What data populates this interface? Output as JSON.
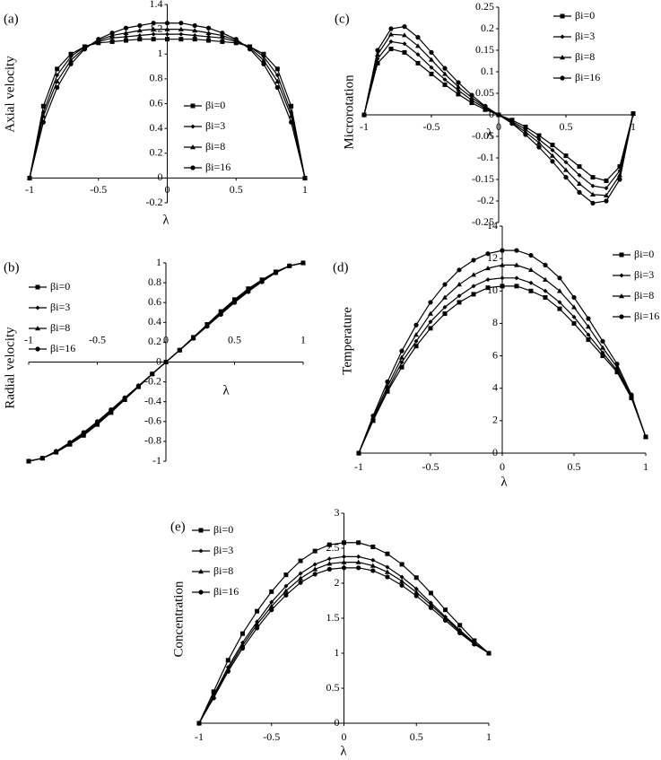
{
  "chart_data": [
    {
      "type": "line",
      "label": "(a)",
      "x_label": "λ",
      "y_label": "Axial velocity",
      "x": [
        -1,
        -0.9,
        -0.8,
        -0.7,
        -0.6,
        -0.5,
        -0.4,
        -0.3,
        -0.2,
        -0.1,
        0,
        0.1,
        0.2,
        0.3,
        0.4,
        0.5,
        0.6,
        0.7,
        0.8,
        0.9,
        1
      ],
      "xlim": [
        -1,
        1
      ],
      "xticks": [
        -1,
        -0.5,
        0,
        0.5,
        1
      ],
      "ylim": [
        -0.2,
        1.4
      ],
      "yticks": [
        -0.2,
        0,
        0.2,
        0.4,
        0.6,
        0.8,
        1,
        1.2,
        1.4
      ],
      "series": [
        {
          "name": "βi=0",
          "color": "#000000",
          "marker": "square",
          "values": [
            0,
            0.58,
            0.88,
            1.0,
            1.06,
            1.09,
            1.1,
            1.11,
            1.12,
            1.12,
            1.12,
            1.12,
            1.12,
            1.11,
            1.1,
            1.09,
            1.06,
            1.0,
            0.88,
            0.58,
            0
          ]
        },
        {
          "name": "βi=3",
          "color": "#000000",
          "marker": "diamond",
          "values": [
            0,
            0.53,
            0.83,
            0.98,
            1.06,
            1.1,
            1.13,
            1.14,
            1.15,
            1.16,
            1.16,
            1.16,
            1.15,
            1.14,
            1.13,
            1.1,
            1.06,
            0.98,
            0.83,
            0.53,
            0
          ]
        },
        {
          "name": "βi=8",
          "color": "#000000",
          "marker": "triangle",
          "values": [
            0,
            0.5,
            0.78,
            0.95,
            1.05,
            1.11,
            1.15,
            1.17,
            1.19,
            1.2,
            1.2,
            1.2,
            1.19,
            1.17,
            1.15,
            1.11,
            1.05,
            0.95,
            0.78,
            0.5,
            0
          ]
        },
        {
          "name": "βi=16",
          "color": "#000000",
          "marker": "circle",
          "values": [
            0,
            0.45,
            0.73,
            0.92,
            1.04,
            1.12,
            1.17,
            1.21,
            1.23,
            1.25,
            1.25,
            1.25,
            1.23,
            1.21,
            1.17,
            1.12,
            1.04,
            0.92,
            0.73,
            0.45,
            0
          ]
        }
      ]
    },
    {
      "type": "line",
      "label": "(b)",
      "x_label": "λ",
      "y_label": "Radial velocity",
      "x": [
        -1,
        -0.9,
        -0.8,
        -0.7,
        -0.6,
        -0.5,
        -0.4,
        -0.3,
        -0.2,
        -0.1,
        0,
        0.1,
        0.2,
        0.3,
        0.4,
        0.5,
        0.6,
        0.7,
        0.8,
        0.9,
        1
      ],
      "xlim": [
        -1,
        1
      ],
      "xticks": [
        -1,
        -0.5,
        0,
        0.5,
        1
      ],
      "ylim": [
        -1,
        1
      ],
      "yticks": [
        -1,
        -0.8,
        -0.6,
        -0.4,
        -0.2,
        0,
        0.2,
        0.4,
        0.6,
        0.8,
        1
      ],
      "series": [
        {
          "name": "βi=0",
          "color": "#000000",
          "marker": "square",
          "values": [
            -1,
            -0.97,
            -0.91,
            -0.83,
            -0.74,
            -0.63,
            -0.51,
            -0.38,
            -0.25,
            -0.12,
            0,
            0.12,
            0.25,
            0.38,
            0.51,
            0.63,
            0.74,
            0.83,
            0.91,
            0.97,
            1
          ]
        },
        {
          "name": "βi=3",
          "color": "#000000",
          "marker": "diamond",
          "values": [
            -1,
            -0.97,
            -0.91,
            -0.82,
            -0.73,
            -0.62,
            -0.5,
            -0.37,
            -0.25,
            -0.12,
            0,
            0.12,
            0.25,
            0.37,
            0.5,
            0.62,
            0.73,
            0.82,
            0.91,
            0.97,
            1
          ]
        },
        {
          "name": "βi=8",
          "color": "#000000",
          "marker": "triangle",
          "values": [
            -1,
            -0.97,
            -0.9,
            -0.82,
            -0.72,
            -0.61,
            -0.49,
            -0.37,
            -0.24,
            -0.12,
            0,
            0.12,
            0.24,
            0.37,
            0.49,
            0.61,
            0.72,
            0.82,
            0.9,
            0.97,
            1
          ]
        },
        {
          "name": "βi=16",
          "color": "#000000",
          "marker": "circle",
          "values": [
            -1,
            -0.97,
            -0.9,
            -0.81,
            -0.71,
            -0.6,
            -0.48,
            -0.36,
            -0.24,
            -0.12,
            0,
            0.12,
            0.24,
            0.36,
            0.48,
            0.6,
            0.71,
            0.81,
            0.9,
            0.97,
            1
          ]
        }
      ]
    },
    {
      "type": "line",
      "label": "(c)",
      "x_label": "λ",
      "y_label": "Microrotation",
      "x": [
        -1,
        -0.9,
        -0.8,
        -0.7,
        -0.6,
        -0.5,
        -0.4,
        -0.3,
        -0.2,
        -0.1,
        0,
        0.1,
        0.2,
        0.3,
        0.4,
        0.5,
        0.6,
        0.7,
        0.8,
        0.9,
        1
      ],
      "xlim": [
        -1,
        1
      ],
      "xticks": [
        -1,
        -0.5,
        0,
        0.5,
        1
      ],
      "ylim": [
        -0.25,
        0.25
      ],
      "yticks": [
        -0.25,
        -0.2,
        -0.15,
        -0.1,
        -0.05,
        0,
        0.05,
        0.1,
        0.15,
        0.2,
        0.25
      ],
      "series": [
        {
          "name": "βi=0",
          "color": "#000000",
          "marker": "square",
          "values": [
            0,
            0.12,
            0.153,
            0.145,
            0.12,
            0.095,
            0.07,
            0.048,
            0.028,
            0.012,
            0,
            -0.012,
            -0.028,
            -0.048,
            -0.07,
            -0.095,
            -0.12,
            -0.145,
            -0.153,
            -0.12,
            0.003
          ]
        },
        {
          "name": "βi=3",
          "color": "#000000",
          "marker": "diamond",
          "values": [
            0,
            0.13,
            0.17,
            0.165,
            0.14,
            0.11,
            0.082,
            0.057,
            0.034,
            0.015,
            0,
            -0.015,
            -0.034,
            -0.057,
            -0.082,
            -0.11,
            -0.14,
            -0.165,
            -0.17,
            -0.13,
            0.003
          ]
        },
        {
          "name": "βi=8",
          "color": "#000000",
          "marker": "triangle",
          "values": [
            0,
            0.14,
            0.187,
            0.185,
            0.16,
            0.128,
            0.095,
            0.065,
            0.04,
            0.018,
            0,
            -0.018,
            -0.04,
            -0.065,
            -0.095,
            -0.128,
            -0.16,
            -0.185,
            -0.187,
            -0.14,
            0.003
          ]
        },
        {
          "name": "βi=16",
          "color": "#000000",
          "marker": "circle",
          "values": [
            0,
            0.15,
            0.2,
            0.205,
            0.18,
            0.145,
            0.108,
            0.075,
            0.046,
            0.02,
            0,
            -0.02,
            -0.046,
            -0.075,
            -0.108,
            -0.145,
            -0.18,
            -0.205,
            -0.2,
            -0.15,
            0.003
          ]
        }
      ]
    },
    {
      "type": "line",
      "label": "(d)",
      "x_label": "λ",
      "y_label": "Temperature",
      "x": [
        -1,
        -0.9,
        -0.8,
        -0.7,
        -0.6,
        -0.5,
        -0.4,
        -0.3,
        -0.2,
        -0.1,
        0,
        0.1,
        0.2,
        0.3,
        0.4,
        0.5,
        0.6,
        0.7,
        0.8,
        0.9,
        1
      ],
      "xlim": [
        -1,
        1
      ],
      "xticks": [
        -1,
        -0.5,
        0,
        0.5,
        1
      ],
      "ylim": [
        0,
        14
      ],
      "yticks": [
        0,
        2,
        4,
        6,
        8,
        10,
        12,
        14
      ],
      "series": [
        {
          "name": "βi=0",
          "color": "#000000",
          "marker": "square",
          "values": [
            0,
            2.0,
            3.8,
            5.3,
            6.6,
            7.7,
            8.6,
            9.3,
            9.8,
            10.2,
            10.3,
            10.3,
            10.0,
            9.6,
            8.9,
            8.0,
            7.0,
            6.0,
            5.0,
            3.4,
            1
          ]
        },
        {
          "name": "βi=3",
          "color": "#000000",
          "marker": "diamond",
          "values": [
            0,
            2.1,
            3.9,
            5.6,
            6.9,
            8.1,
            9.0,
            9.7,
            10.3,
            10.7,
            10.8,
            10.8,
            10.5,
            10.0,
            9.3,
            8.4,
            7.3,
            6.2,
            5.1,
            3.5,
            1
          ]
        },
        {
          "name": "βi=8",
          "color": "#000000",
          "marker": "triangle",
          "values": [
            0,
            2.2,
            4.1,
            5.9,
            7.3,
            8.6,
            9.6,
            10.4,
            11.0,
            11.4,
            11.6,
            11.6,
            11.3,
            10.7,
            10.0,
            9.0,
            7.8,
            6.5,
            5.3,
            3.5,
            1
          ]
        },
        {
          "name": "βi=16",
          "color": "#000000",
          "marker": "circle",
          "values": [
            0,
            2.3,
            4.4,
            6.3,
            7.9,
            9.3,
            10.4,
            11.3,
            11.9,
            12.3,
            12.5,
            12.5,
            12.2,
            11.6,
            10.8,
            9.6,
            8.3,
            6.9,
            5.5,
            3.6,
            1
          ]
        }
      ]
    },
    {
      "type": "line",
      "label": "(e)",
      "x_label": "λ",
      "y_label": "Concentration",
      "x": [
        -1,
        -0.9,
        -0.8,
        -0.7,
        -0.6,
        -0.5,
        -0.4,
        -0.3,
        -0.2,
        -0.1,
        0,
        0.1,
        0.2,
        0.3,
        0.4,
        0.5,
        0.6,
        0.7,
        0.8,
        0.9,
        1
      ],
      "xlim": [
        -1,
        1
      ],
      "xticks": [
        -1,
        -0.5,
        0,
        0.5,
        1
      ],
      "ylim": [
        0,
        3
      ],
      "yticks": [
        0,
        0.5,
        1,
        1.5,
        2,
        2.5,
        3
      ],
      "series": [
        {
          "name": "βi=0",
          "color": "#000000",
          "marker": "square",
          "values": [
            0,
            0.45,
            0.9,
            1.28,
            1.6,
            1.88,
            2.12,
            2.32,
            2.46,
            2.55,
            2.58,
            2.58,
            2.52,
            2.42,
            2.27,
            2.08,
            1.86,
            1.62,
            1.4,
            1.18,
            1
          ]
        },
        {
          "name": "βi=3",
          "color": "#000000",
          "marker": "diamond",
          "values": [
            0,
            0.4,
            0.8,
            1.15,
            1.45,
            1.73,
            1.96,
            2.14,
            2.27,
            2.35,
            2.38,
            2.38,
            2.33,
            2.23,
            2.09,
            1.92,
            1.72,
            1.52,
            1.33,
            1.15,
            1
          ]
        },
        {
          "name": "βi=8",
          "color": "#000000",
          "marker": "triangle",
          "values": [
            0,
            0.38,
            0.77,
            1.11,
            1.41,
            1.67,
            1.89,
            2.07,
            2.2,
            2.28,
            2.3,
            2.3,
            2.25,
            2.16,
            2.03,
            1.87,
            1.69,
            1.5,
            1.31,
            1.14,
            1
          ]
        },
        {
          "name": "βi=16",
          "color": "#000000",
          "marker": "circle",
          "values": [
            0,
            0.36,
            0.74,
            1.07,
            1.36,
            1.62,
            1.83,
            2.01,
            2.13,
            2.2,
            2.22,
            2.22,
            2.18,
            2.09,
            1.97,
            1.82,
            1.65,
            1.47,
            1.29,
            1.13,
            1
          ]
        }
      ]
    }
  ]
}
